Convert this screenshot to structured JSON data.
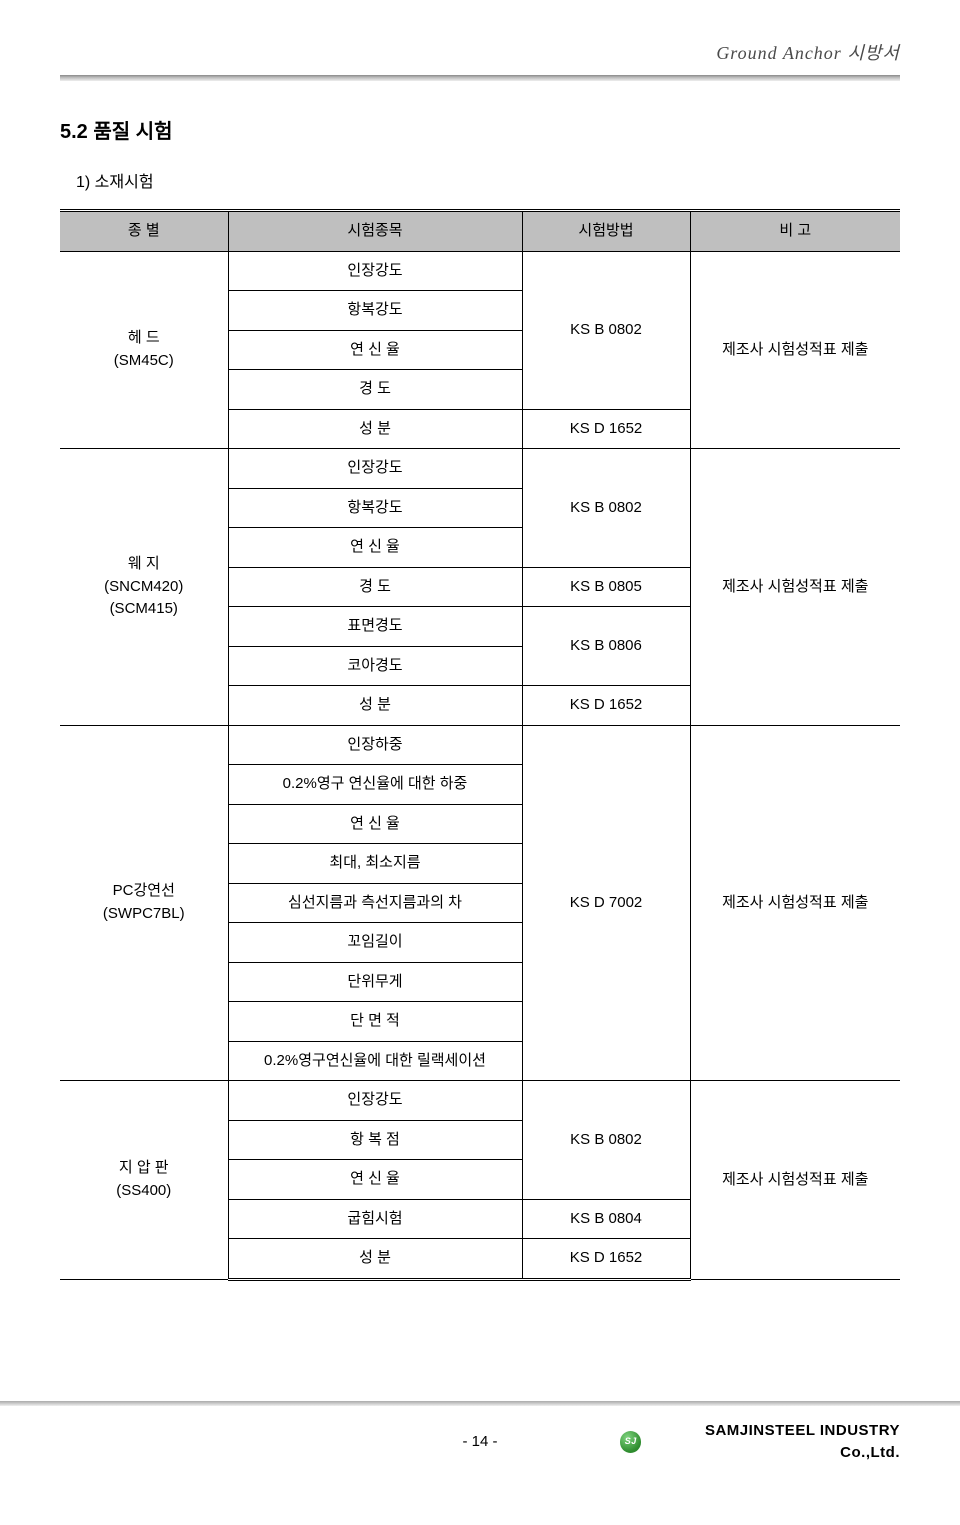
{
  "header": {
    "title": "Ground Anchor 시방서"
  },
  "section": {
    "heading": "5.2 품질 시험",
    "sub": "1) 소재시험"
  },
  "table": {
    "columns": [
      "종   별",
      "시험종목",
      "시험방법",
      "비   고"
    ],
    "col_widths": [
      "20%",
      "35%",
      "20%",
      "25%"
    ],
    "header_bg": "#bfbfbf",
    "groups": [
      {
        "category": "헤   드\n(SM45C)",
        "remark": "제조사 시험성적표 제출",
        "rows": [
          {
            "item": "인장강도",
            "method": "KS B 0802",
            "method_span": 4
          },
          {
            "item": "항복강도"
          },
          {
            "item": "연 신 율"
          },
          {
            "item": "경   도"
          },
          {
            "item": "성   분",
            "method": "KS D 1652",
            "method_span": 1
          }
        ]
      },
      {
        "category": "웨   지\n(SNCM420)\n(SCM415)",
        "remark": "제조사 시험성적표 제출",
        "rows": [
          {
            "item": "인장강도",
            "method": "KS B 0802",
            "method_span": 3
          },
          {
            "item": "항복강도"
          },
          {
            "item": "연 신 율"
          },
          {
            "item": "경   도",
            "method": "KS B 0805",
            "method_span": 1
          },
          {
            "item": "표면경도",
            "method": "KS B 0806",
            "method_span": 2
          },
          {
            "item": "코아경도"
          },
          {
            "item": "성   분",
            "method": "KS D 1652",
            "method_span": 1
          }
        ]
      },
      {
        "category": "PC강연선\n(SWPC7BL)",
        "remark": "제조사 시험성적표 제출",
        "rows": [
          {
            "item": "인장하중",
            "method": "KS D 7002",
            "method_span": 9
          },
          {
            "item": "0.2%영구 연신율에 대한 하중"
          },
          {
            "item": "연 신 율"
          },
          {
            "item": "최대, 최소지름"
          },
          {
            "item": "심선지름과 측선지름과의 차"
          },
          {
            "item": "꼬임길이"
          },
          {
            "item": "단위무게"
          },
          {
            "item": "단 면 적"
          },
          {
            "item": "0.2%영구연신율에 대한 릴랙세이션"
          }
        ]
      },
      {
        "category": "지 압 판\n(SS400)",
        "remark": "제조사 시험성적표 제출",
        "rows": [
          {
            "item": "인장강도",
            "method": "KS B 0802",
            "method_span": 3
          },
          {
            "item": "항 복 점"
          },
          {
            "item": "연 신 율"
          },
          {
            "item": "굽힘시험",
            "method": "KS B 0804",
            "method_span": 1
          },
          {
            "item": "성   분",
            "method": "KS D 1652",
            "method_span": 1
          }
        ]
      }
    ]
  },
  "footer": {
    "page": "- 14 -",
    "logo_text": "SJ",
    "company": "SAMJINSTEEL INDUSTRY Co.,Ltd."
  }
}
